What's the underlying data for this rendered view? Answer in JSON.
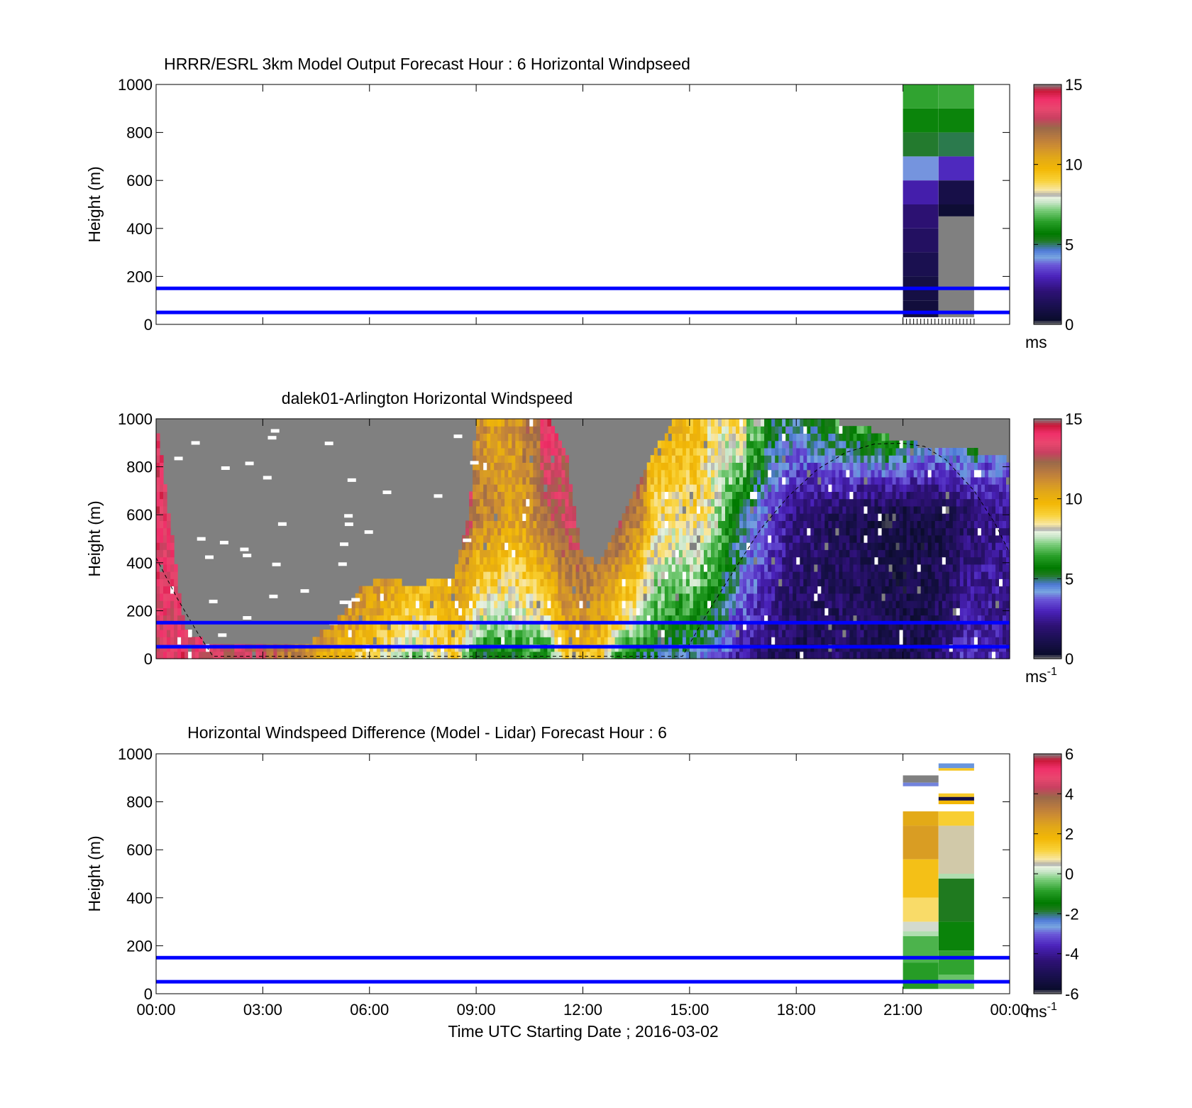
{
  "colors": {
    "reference_lines": "#0000ff",
    "sun_curve": "#000000",
    "no_data_gray": "#808080"
  },
  "colormap": [
    [
      0,
      "#808080"
    ],
    [
      0.02,
      "#0b0c2c"
    ],
    [
      0.08,
      "#1a1050"
    ],
    [
      0.14,
      "#2e1176"
    ],
    [
      0.2,
      "#4a22ba"
    ],
    [
      0.25,
      "#6b57d8"
    ],
    [
      0.28,
      "#78a6e0"
    ],
    [
      0.31,
      "#4f79d8"
    ],
    [
      0.35,
      "#1f7a1f"
    ],
    [
      0.38,
      "#007a00"
    ],
    [
      0.43,
      "#2aa02a"
    ],
    [
      0.48,
      "#7fcf7f"
    ],
    [
      0.51,
      "#c9e6c9"
    ],
    [
      0.53,
      "#e8f2e0"
    ],
    [
      0.54,
      "#aaaaaa"
    ],
    [
      0.56,
      "#f8e8a8"
    ],
    [
      0.6,
      "#f9d23a"
    ],
    [
      0.65,
      "#f2b705"
    ],
    [
      0.7,
      "#e0a71a"
    ],
    [
      0.74,
      "#cf8f30"
    ],
    [
      0.78,
      "#b87a40"
    ],
    [
      0.82,
      "#9a6a4a"
    ],
    [
      0.86,
      "#c84060"
    ],
    [
      0.9,
      "#e8476e"
    ],
    [
      0.94,
      "#f0306a"
    ],
    [
      0.975,
      "#c81838"
    ],
    [
      1,
      "#808080"
    ]
  ],
  "chart_data": [
    {
      "type": "heatmap",
      "title": "HRRR/ESRL 3km Model Output   Forecast Hour : 6 Horizontal Windpseed",
      "ylabel": "Height (m)",
      "xlabel": "",
      "ylim": [
        0,
        1000
      ],
      "xlim_hours": [
        0,
        24
      ],
      "yticks": [
        "0",
        "200",
        "400",
        "600",
        "800",
        "1000"
      ],
      "xticks": [
        "00:00",
        "03:00",
        "06:00",
        "09:00",
        "12:00",
        "15:00",
        "18:00",
        "21:00",
        "00:00"
      ],
      "show_xtick_labels": false,
      "reference_lines_m": [
        50,
        150
      ],
      "colorbar": {
        "min": 0,
        "max": 15,
        "ticks": [
          "0",
          "5",
          "10",
          "15"
        ],
        "tick_values": [
          0,
          5,
          10,
          15
        ],
        "unit": "ms",
        "unit_sup": ""
      },
      "columns": [
        {
          "t_start_hours": 21.0,
          "t_end_hours": 22.0,
          "cells": [
            {
              "z0": 900,
              "z1": 1000,
              "v": 6.5
            },
            {
              "z0": 800,
              "z1": 900,
              "v": 5.9
            },
            {
              "z0": 700,
              "z1": 800,
              "v": 5.2
            },
            {
              "z0": 600,
              "z1": 700,
              "v": 4.1
            },
            {
              "z0": 500,
              "z1": 600,
              "v": 2.8
            },
            {
              "z0": 400,
              "z1": 500,
              "v": 2.0
            },
            {
              "z0": 300,
              "z1": 400,
              "v": 1.6
            },
            {
              "z0": 200,
              "z1": 300,
              "v": 1.2
            },
            {
              "z0": 100,
              "z1": 200,
              "v": 0.9
            },
            {
              "z0": 30,
              "z1": 100,
              "v": 0.7
            }
          ]
        },
        {
          "t_start_hours": 22.0,
          "t_end_hours": 23.0,
          "cells": [
            {
              "z0": 900,
              "z1": 1000,
              "v": 6.6
            },
            {
              "z0": 800,
              "z1": 900,
              "v": 5.9
            },
            {
              "z0": 700,
              "z1": 800,
              "v": 5.1
            },
            {
              "z0": 600,
              "z1": 700,
              "v": 3.1
            },
            {
              "z0": 500,
              "z1": 600,
              "v": 1.0
            },
            {
              "z0": 450,
              "z1": 500,
              "v": 0.5
            },
            {
              "z0": 30,
              "z1": 450,
              "v": -1
            }
          ]
        }
      ]
    },
    {
      "type": "heatmap",
      "title": "dalek01-Arlington  Horizontal Windspeed",
      "ylabel": "Height (m)",
      "xlabel": "",
      "ylim": [
        0,
        1000
      ],
      "xlim_hours": [
        0,
        24
      ],
      "yticks": [
        "0",
        "200",
        "400",
        "600",
        "800",
        "1000"
      ],
      "xticks": [
        "00:00",
        "03:00",
        "06:00",
        "09:00",
        "12:00",
        "15:00",
        "18:00",
        "21:00",
        "00:00"
      ],
      "show_xtick_labels": false,
      "reference_lines_m": [
        50,
        150
      ],
      "colorbar": {
        "min": 0,
        "max": 15,
        "ticks": [
          "0",
          "5",
          "10",
          "15"
        ],
        "tick_values": [
          0,
          5,
          10,
          15
        ],
        "unit": "ms",
        "unit_sup": "-1"
      },
      "field_profile": {
        "anchors_hours": [
          0.0,
          0.8,
          1.5,
          2.5,
          3.5,
          4.2,
          5.0,
          5.8,
          6.5,
          7.2,
          7.8,
          8.4,
          8.8,
          9.0,
          9.5,
          10.0,
          10.5,
          11.0,
          11.5,
          12.0,
          12.5,
          13.0,
          13.6,
          14.0,
          14.6,
          15.2,
          15.8,
          16.3,
          16.8,
          17.3,
          17.8,
          18.3,
          18.8,
          19.3,
          19.8,
          20.3,
          20.8,
          21.3,
          21.8,
          22.3,
          22.8,
          23.3,
          24.0
        ],
        "near_surface_speed": [
          13,
          14,
          13,
          13,
          12,
          11,
          10,
          9,
          8,
          7,
          8,
          9,
          6,
          5.5,
          5,
          5.5,
          6,
          5.5,
          9,
          9.5,
          9,
          6,
          5,
          5,
          4.5,
          4,
          3.5,
          2.5,
          2,
          1.5,
          1.2,
          1.2,
          1.5,
          1.8,
          1.8,
          1.5,
          1.3,
          1.2,
          1.5,
          2.5,
          3.5,
          3.0,
          2.5
        ],
        "mid_level_speed": [
          14,
          13,
          13,
          13,
          13,
          12.5,
          12.5,
          12.5,
          12.5,
          11.5,
          11,
          12,
          13,
          11.5,
          11.5,
          10.5,
          11,
          12.5,
          13,
          13,
          12.5,
          13,
          11.5,
          9,
          8.5,
          9,
          7.5,
          5.5,
          4.5,
          3.5,
          2.5,
          1.8,
          1.6,
          1.4,
          1.2,
          1.0,
          0.8,
          0.9,
          1.0,
          1.2,
          1.6,
          2.2,
          2.5
        ],
        "upper_level_speed": [
          14,
          -1,
          -1,
          -1,
          -1,
          -1,
          -1,
          -1,
          -1,
          -1,
          -1,
          -1,
          14,
          11,
          10.5,
          11,
          12,
          14,
          -1,
          -1,
          -1,
          13.5,
          13,
          10,
          10,
          9.5,
          8.5,
          9,
          7.5,
          5.5,
          5,
          5.5,
          6,
          6.5,
          7,
          7.5,
          7.8,
          6.5,
          5.5,
          6,
          6.5,
          5,
          5.5
        ],
        "data_top_m": [
          1000,
          120,
          60,
          60,
          60,
          50,
          150,
          300,
          350,
          300,
          330,
          350,
          600,
          1000,
          1000,
          1000,
          1000,
          1000,
          880,
          420,
          400,
          560,
          750,
          870,
          1000,
          1000,
          1000,
          1000,
          1000,
          1000,
          1000,
          1000,
          1000,
          980,
          960,
          950,
          900,
          900,
          860,
          880,
          870,
          860,
          830
        ]
      },
      "sun_curve_points": [
        [
          0.0,
          420
        ],
        [
          0.6,
          250
        ],
        [
          1.2,
          100
        ],
        [
          1.6,
          10
        ],
        [
          14.8,
          10
        ],
        [
          15.5,
          190
        ],
        [
          16.3,
          380
        ],
        [
          17.0,
          540
        ],
        [
          17.8,
          680
        ],
        [
          18.6,
          790
        ],
        [
          19.4,
          860
        ],
        [
          20.2,
          895
        ],
        [
          21.0,
          898
        ],
        [
          21.6,
          885
        ],
        [
          22.2,
          830
        ],
        [
          23.0,
          700
        ],
        [
          23.6,
          560
        ],
        [
          24.0,
          440
        ]
      ]
    },
    {
      "type": "heatmap",
      "title": "Horizontal Windspeed Difference (Model - Lidar) Forecast Hour : 6",
      "ylabel": "Height (m)",
      "xlabel": "Time UTC  Starting Date ; 2016-03-02",
      "ylim": [
        0,
        1000
      ],
      "xlim_hours": [
        0,
        24
      ],
      "yticks": [
        "0",
        "200",
        "400",
        "600",
        "800",
        "1000"
      ],
      "xticks": [
        "00:00",
        "03:00",
        "06:00",
        "09:00",
        "12:00",
        "15:00",
        "18:00",
        "21:00",
        "00:00"
      ],
      "show_xtick_labels": true,
      "reference_lines_m": [
        50,
        150
      ],
      "colorbar": {
        "min": -6,
        "max": 6,
        "ticks": [
          "-6",
          "-4",
          "-2",
          "0",
          "2",
          "4",
          "6"
        ],
        "tick_values": [
          -6,
          -4,
          -2,
          0,
          2,
          4,
          6
        ],
        "unit": "ms",
        "unit_sup": "-1"
      },
      "columns": [
        {
          "t_start_hours": 21.0,
          "t_end_hours": 22.0,
          "cells": [
            {
              "z0": 880,
              "z1": 910,
              "v": -7
            },
            {
              "z0": 865,
              "z1": 880,
              "v": -2.8
            },
            {
              "z0": 700,
              "z1": 760,
              "v": 2.3
            },
            {
              "z0": 560,
              "z1": 700,
              "v": 2.6
            },
            {
              "z0": 400,
              "z1": 560,
              "v": 1.6
            },
            {
              "z0": 300,
              "z1": 400,
              "v": 1.0
            },
            {
              "z0": 260,
              "z1": 300,
              "v": 0.4
            },
            {
              "z0": 240,
              "z1": 260,
              "v": 0.0
            },
            {
              "z0": 130,
              "z1": 240,
              "v": -0.6
            },
            {
              "z0": 20,
              "z1": 130,
              "v": -0.9
            }
          ]
        },
        {
          "t_start_hours": 22.0,
          "t_end_hours": 23.0,
          "cells": [
            {
              "z0": 940,
              "z1": 960,
              "v": -2.5
            },
            {
              "z0": 930,
              "z1": 940,
              "v": 1.5
            },
            {
              "z0": 820,
              "z1": 835,
              "v": 1.4
            },
            {
              "z0": 805,
              "z1": 820,
              "v": -5.3
            },
            {
              "z0": 790,
              "z1": 805,
              "v": 1.8
            },
            {
              "z0": 700,
              "z1": 760,
              "v": 1.3
            },
            {
              "z0": 500,
              "z1": 700,
              "v": 0.6
            },
            {
              "z0": 480,
              "z1": 500,
              "v": 0.0
            },
            {
              "z0": 300,
              "z1": 480,
              "v": -1.8
            },
            {
              "z0": 180,
              "z1": 300,
              "v": -1.3
            },
            {
              "z0": 80,
              "z1": 180,
              "v": -0.8
            },
            {
              "z0": 20,
              "z1": 80,
              "v": -0.4
            }
          ]
        }
      ]
    }
  ]
}
